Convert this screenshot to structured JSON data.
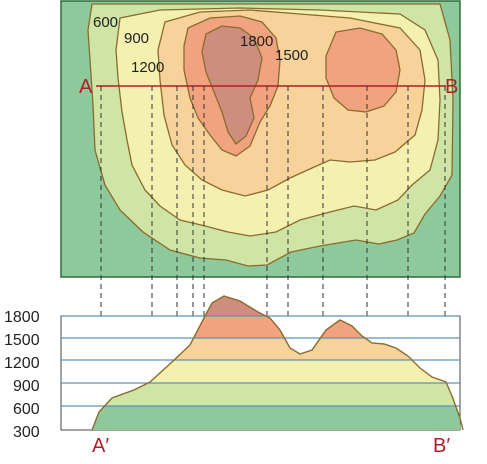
{
  "map": {
    "contour_labels": [
      "600",
      "900",
      "1200",
      "1800",
      "1500"
    ],
    "section_start": "A",
    "section_end": "B"
  },
  "profile": {
    "elevation_ticks": [
      "1800",
      "1500",
      "1200",
      "900",
      "600",
      "300"
    ],
    "start_label": "A′",
    "end_label": "B′"
  },
  "colors": {
    "background_green": "#8dc99a",
    "band_600": "#cfe5a6",
    "band_900": "#f4f0b0",
    "band_1200": "#f7d39b",
    "band_1500": "#f0a37e",
    "band_1800": "#cf8e7d",
    "contour_line": "#8a6b2c",
    "section_line": "#b01e2a",
    "grid_line": "#5b93b6"
  }
}
